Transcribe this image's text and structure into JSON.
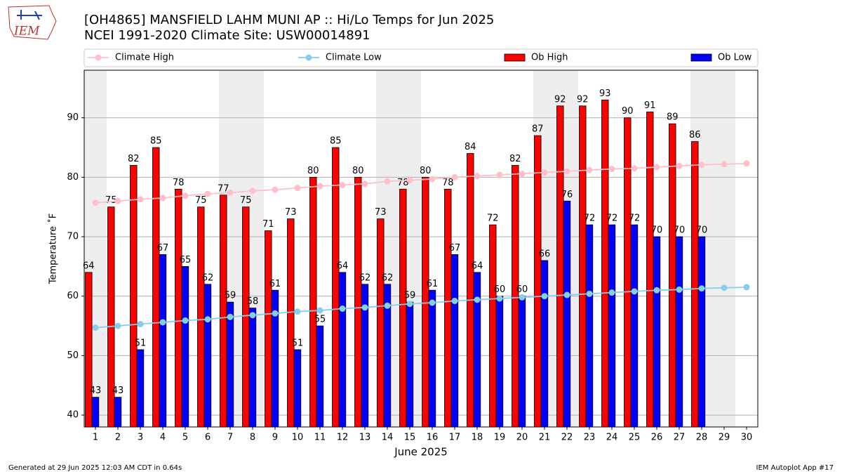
{
  "logo": "IEM",
  "chart_data": {
    "type": "bar",
    "title": "[OH4865] MANSFIELD LAHM MUNI AP :: Hi/Lo Temps for Jun 2025",
    "subtitle": "NCEI 1991-2020 Climate Site: USW00014891",
    "xlabel": "June 2025",
    "ylabel": "Temperature ˚F",
    "categories": [
      "1",
      "2",
      "3",
      "4",
      "5",
      "6",
      "7",
      "8",
      "9",
      "10",
      "11",
      "12",
      "13",
      "14",
      "15",
      "16",
      "17",
      "18",
      "19",
      "20",
      "21",
      "22",
      "23",
      "24",
      "25",
      "26",
      "27",
      "28",
      "29",
      "30"
    ],
    "weekend_days": [
      1,
      7,
      8,
      14,
      15,
      21,
      22,
      28,
      29
    ],
    "weekend_color": "#eeeeee",
    "series": [
      {
        "name": "Climate High",
        "type": "line",
        "color": "#ffc0cb",
        "values": [
          75.7,
          76.0,
          76.3,
          76.5,
          76.9,
          77.2,
          77.4,
          77.7,
          77.9,
          78.2,
          78.5,
          78.7,
          78.9,
          79.3,
          79.5,
          79.7,
          80.0,
          80.2,
          80.4,
          80.6,
          80.8,
          81.0,
          81.2,
          81.4,
          81.5,
          81.7,
          81.9,
          82.1,
          82.2,
          82.3
        ]
      },
      {
        "name": "Climate Low",
        "type": "line",
        "color": "#87ceeb",
        "values": [
          54.7,
          55.0,
          55.3,
          55.6,
          55.9,
          56.1,
          56.5,
          56.8,
          57.1,
          57.4,
          57.6,
          57.9,
          58.1,
          58.4,
          58.7,
          58.9,
          59.2,
          59.4,
          59.6,
          59.8,
          60.0,
          60.2,
          60.4,
          60.6,
          60.8,
          61.0,
          61.1,
          61.3,
          61.4,
          61.5
        ]
      },
      {
        "name": "Ob High",
        "type": "bar",
        "color": "#ff0000",
        "values": [
          64,
          75,
          82,
          85,
          78,
          75,
          77,
          75,
          71,
          73,
          80,
          85,
          80,
          73,
          78,
          80,
          78,
          84,
          72,
          82,
          87,
          92,
          92,
          93,
          90,
          91,
          89,
          86,
          null,
          null
        ]
      },
      {
        "name": "Ob Low",
        "type": "bar",
        "color": "#0000ff",
        "values": [
          43,
          43,
          51,
          67,
          65,
          62,
          59,
          58,
          61,
          51,
          55,
          64,
          62,
          62,
          59,
          61,
          67,
          64,
          60,
          60,
          66,
          76,
          72,
          72,
          72,
          70,
          70,
          70,
          null,
          null
        ]
      }
    ],
    "ylim": [
      38,
      98
    ],
    "yticks": [
      40,
      50,
      60,
      70,
      80,
      90
    ],
    "grid": true,
    "legend": "top"
  },
  "footer": {
    "left": "Generated at 29 Jun 2025 12:03 AM CDT in 0.64s",
    "right": "IEM Autoplot App #17"
  }
}
